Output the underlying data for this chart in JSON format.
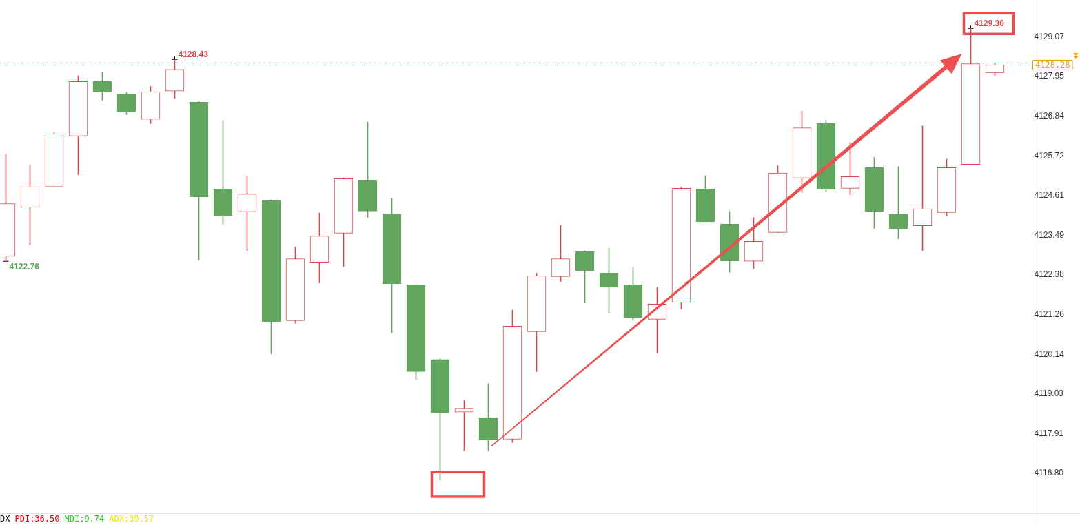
{
  "chart_data": {
    "type": "candlestick",
    "categories": [
      null,
      null,
      null,
      null,
      null,
      null,
      null,
      null,
      null,
      null,
      null,
      null,
      null,
      null,
      null,
      null,
      null,
      null,
      null,
      null,
      null,
      null,
      null,
      null,
      null,
      null,
      null,
      null,
      null,
      null,
      null,
      null,
      null,
      null,
      null,
      null,
      null,
      null,
      null,
      null,
      null,
      null
    ],
    "ohlc": [
      [
        4122.9,
        4125.77,
        4122.76,
        4124.38
      ],
      [
        4124.28,
        4125.46,
        4123.23,
        4124.85
      ],
      [
        4124.85,
        4126.37,
        4124.85,
        4126.34
      ],
      [
        4126.28,
        4127.97,
        4125.19,
        4127.81
      ],
      [
        4127.81,
        4128.08,
        4127.28,
        4127.52
      ],
      [
        4127.46,
        4127.5,
        4126.88,
        4126.95
      ],
      [
        4126.75,
        4127.67,
        4126.63,
        4127.52
      ],
      [
        4127.54,
        4128.43,
        4127.33,
        4128.15
      ],
      [
        4127.23,
        4127.25,
        4122.8,
        4124.57
      ],
      [
        4124.79,
        4126.71,
        4123.79,
        4124.04
      ],
      [
        4124.15,
        4125.16,
        4123.06,
        4124.65
      ],
      [
        4124.46,
        4124.48,
        4120.16,
        4121.06
      ],
      [
        4121.09,
        4123.16,
        4121.02,
        4122.83
      ],
      [
        4122.73,
        4124.12,
        4122.15,
        4123.47
      ],
      [
        4123.55,
        4125.1,
        4122.61,
        4125.08
      ],
      [
        4125.04,
        4126.67,
        4123.99,
        4124.17
      ],
      [
        4124.09,
        4124.52,
        4120.75,
        4122.13
      ],
      [
        4122.1,
        4122.11,
        4119.44,
        4119.66
      ],
      [
        4120.0,
        4120.02,
        4116.61,
        4118.5
      ],
      [
        4118.52,
        4118.85,
        4117.44,
        4118.63
      ],
      [
        4118.37,
        4119.32,
        4117.44,
        4117.74
      ],
      [
        4117.76,
        4121.39,
        4117.67,
        4120.94
      ],
      [
        4120.78,
        4122.43,
        4119.66,
        4122.35
      ],
      [
        4122.33,
        4123.77,
        4122.19,
        4122.83
      ],
      [
        4123.03,
        4123.05,
        4121.59,
        4122.5
      ],
      [
        4122.43,
        4123.13,
        4121.3,
        4122.05
      ],
      [
        4122.1,
        4122.59,
        4121.1,
        4121.18
      ],
      [
        4121.13,
        4122.03,
        4120.19,
        4121.56
      ],
      [
        4121.61,
        4124.85,
        4121.43,
        4124.81
      ],
      [
        4124.79,
        4125.16,
        4123.87,
        4123.87
      ],
      [
        4123.81,
        4124.16,
        4122.45,
        4122.77
      ],
      [
        4122.76,
        4123.99,
        4122.56,
        4123.32
      ],
      [
        4123.57,
        4125.44,
        4123.57,
        4125.24
      ],
      [
        4125.1,
        4126.98,
        4124.69,
        4126.51
      ],
      [
        4126.63,
        4126.73,
        4124.71,
        4124.78
      ],
      [
        4124.81,
        4126.1,
        4124.62,
        4125.14
      ],
      [
        4125.39,
        4125.68,
        4123.68,
        4124.16
      ],
      [
        4124.08,
        4125.42,
        4123.39,
        4123.68
      ],
      [
        4123.76,
        4126.56,
        4123.06,
        4124.23
      ],
      [
        4124.13,
        4125.63,
        4124.03,
        4125.39
      ],
      [
        4125.48,
        4129.3,
        4125.48,
        4128.31
      ],
      [
        4128.05,
        4128.32,
        4127.98,
        4128.28
      ]
    ],
    "colors": [
      "#d84a4c",
      "#d84a4c",
      "#d84a4c",
      "#d84a4c",
      "#62a55e",
      "#62a55e",
      "#d84a4c",
      "#d84a4c",
      "#62a55e",
      "#62a55e",
      "#d84a4c",
      "#62a55e",
      "#d84a4c",
      "#d84a4c",
      "#d84a4c",
      "#62a55e",
      "#62a55e",
      "#62a55e",
      "#62a55e",
      "#d84a4c",
      "#62a55e",
      "#d84a4c",
      "#d84a4c",
      "#d84a4c",
      "#62a55e",
      "#62a55e",
      "#62a55e",
      "#d84a4c",
      "#d84a4c",
      "#62a55e",
      "#62a55e",
      "#d84a4c",
      "#d84a4c",
      "#d84a4c",
      "#62a55e",
      "#d84a4c",
      "#62a55e",
      "#62a55e",
      "#d84a4c",
      "#d84a4c",
      "#d84a4c",
      "#d84a4c"
    ],
    "ylim": [
      4115.68,
      4130.1
    ],
    "yticks": [
      4129.07,
      4127.95,
      4126.84,
      4125.72,
      4124.61,
      4123.49,
      4122.38,
      4121.26,
      4120.14,
      4119.03,
      4117.91,
      {
        "value": 4116.8,
        "label": "4116.80"
      }
    ],
    "ref_lines": [
      {
        "axis": "y",
        "value": 4128.28,
        "label": "4128.28",
        "color": "#4f86c6",
        "line_style": "dashed"
      }
    ],
    "annotations": [
      "4128.43",
      "4122.76",
      "4129.30",
      "DX",
      "PDI:36.50",
      "MDI:9.74",
      "ADX:39.57"
    ]
  }
}
